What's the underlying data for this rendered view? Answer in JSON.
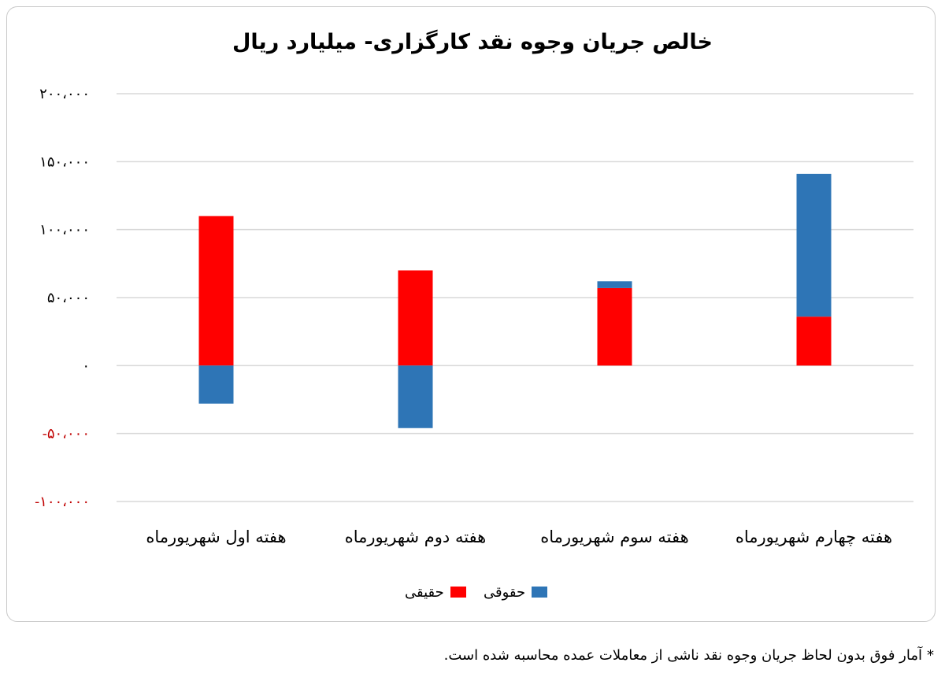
{
  "chart_data": {
    "type": "bar",
    "stacked": true,
    "title": "خالص جریان وجوه نقد کارگزاری- میلیارد ریال",
    "categories": [
      "هفته اول شهریورماه",
      "هفته دوم شهریورماه",
      "هفته سوم شهریورماه",
      "هفته چهارم شهریورماه"
    ],
    "series": [
      {
        "name": "حقیقی",
        "color": "#ff0000",
        "values": [
          110000,
          70000,
          57000,
          36000
        ]
      },
      {
        "name": "حقوقی",
        "color": "#2e75b6",
        "values": [
          -28000,
          -46000,
          5000,
          105000
        ]
      }
    ],
    "ylim": [
      -100000,
      200000
    ],
    "yticks": [
      {
        "value": 200000,
        "label": "۲۰۰،۰۰۰",
        "color": "#000000"
      },
      {
        "value": 150000,
        "label": "۱۵۰،۰۰۰",
        "color": "#000000"
      },
      {
        "value": 100000,
        "label": "۱۰۰،۰۰۰",
        "color": "#000000"
      },
      {
        "value": 50000,
        "label": "۵۰،۰۰۰",
        "color": "#000000"
      },
      {
        "value": 0,
        "label": "۰",
        "color": "#000000"
      },
      {
        "value": -50000,
        "label": "-۵۰،۰۰۰",
        "color": "#c00000"
      },
      {
        "value": -100000,
        "label": "-۱۰۰،۰۰۰",
        "color": "#c00000"
      }
    ],
    "grid": true,
    "legend_position": "bottom"
  },
  "footnote": {
    "marker": "*",
    "text": "آمار فوق بدون لحاظ جریان وجوه نقد ناشی از معاملات عمده محاسبه شده است."
  }
}
